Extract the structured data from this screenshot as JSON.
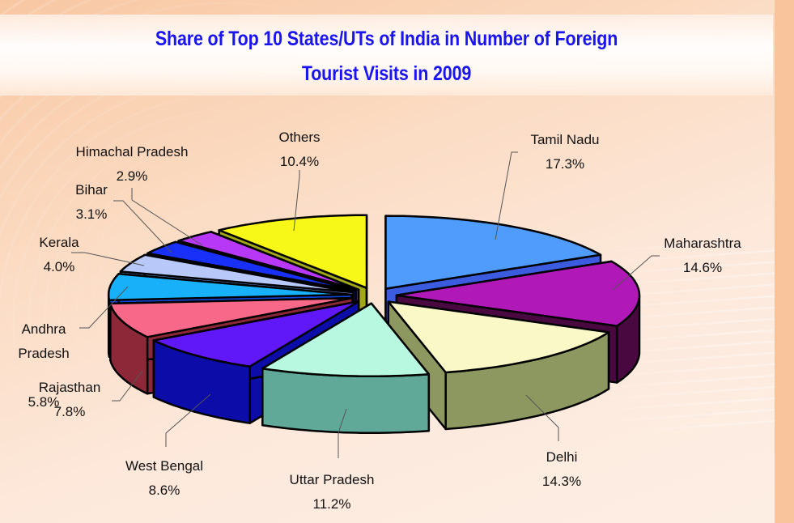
{
  "title": {
    "line1": "Share of Top 10 States/UTs of India in Number of Foreign",
    "line2": "Tourist Visits in 2009"
  },
  "chart_data": {
    "type": "pie",
    "variant": "3d-exploded",
    "title": "Share of Top 10 States/UTs of India in Number of Foreign Tourist Visits in 2009",
    "unit": "%",
    "categories": [
      "Tamil Nadu",
      "Maharashtra",
      "Delhi",
      "Uttar Pradesh",
      "West Bengal",
      "Rajasthan",
      "Andhra Pradesh",
      "Kerala",
      "Bihar",
      "Himachal Pradesh",
      "Others"
    ],
    "values": [
      17.3,
      14.6,
      14.3,
      11.2,
      8.6,
      7.8,
      5.8,
      4.0,
      3.1,
      2.9,
      10.4
    ],
    "labels": [
      "17.3%",
      "14.6%",
      "14.3%",
      "11.2%",
      "8.6%",
      "7.8%",
      "5.8%",
      "4.0%",
      "3.1%",
      "2.9%",
      "10.4%"
    ],
    "colors": {
      "top": [
        "#4f9cfc",
        "#b018b8",
        "#fbf8c8",
        "#b8f8e0",
        "#6018f8",
        "#f86888",
        "#18b0f8",
        "#b8c8f8",
        "#1830f8",
        "#b838f8",
        "#f8f818"
      ],
      "side": [
        "#3c5ce0",
        "#4a0840",
        "#8c9860",
        "#60a898",
        "#0c0ca8",
        "#8c2838",
        "#1048e0",
        "#6c8cd0",
        "#1020b0",
        "#7020c0",
        "#a0a818"
      ]
    },
    "legend": "none (data labels with leader lines)"
  },
  "labels": [
    {
      "name": "Tamil Nadu",
      "pct": "17.3%"
    },
    {
      "name": "Maharashtra",
      "pct": "14.6%"
    },
    {
      "name": "Delhi",
      "pct": "14.3%"
    },
    {
      "name": "Uttar Pradesh",
      "pct": "11.2%"
    },
    {
      "name": "West Bengal",
      "pct": "8.6%"
    },
    {
      "name": "Rajasthan",
      "pct": "7.8%"
    },
    {
      "name": "Andhra\nPradesh",
      "pct": "5.8%"
    },
    {
      "name": "Kerala",
      "pct": "4.0%"
    },
    {
      "name": "Bihar",
      "pct": "3.1%"
    },
    {
      "name": "Himachal Pradesh",
      "pct": "2.9%"
    },
    {
      "name": "Others",
      "pct": "10.4%"
    }
  ]
}
